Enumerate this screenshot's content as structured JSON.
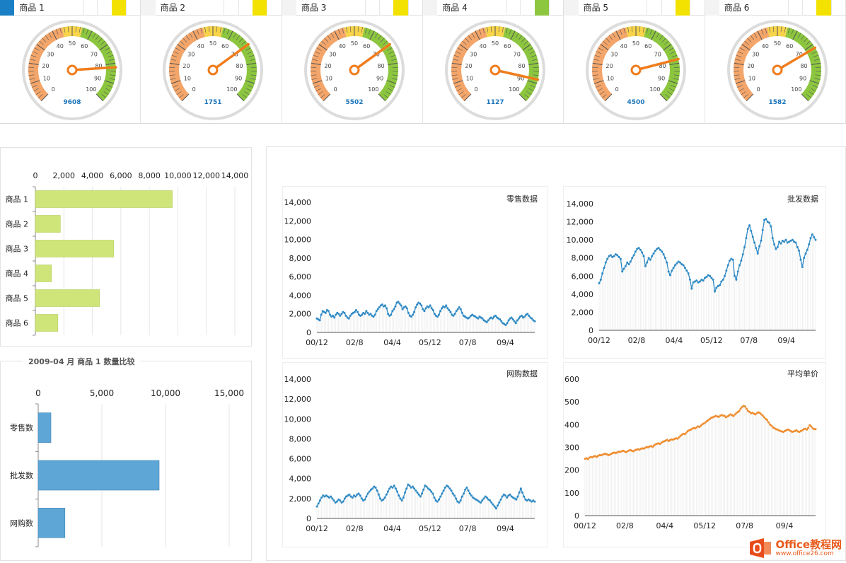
{
  "tabs": [
    {
      "label": "商品 1",
      "swatch": "#1a7fc4",
      "accent": "#f3e200"
    },
    {
      "label": "商品 2",
      "swatch": "#f3f3f3",
      "accent": "#f3e200"
    },
    {
      "label": "商品 3",
      "swatch": "#f3f3f3",
      "accent": "#f3e200"
    },
    {
      "label": "商品 4",
      "swatch": "#f3f3f3",
      "accent": "#8dc63f"
    },
    {
      "label": "商品 5",
      "swatch": "#f3f3f3",
      "accent": "#f3e200"
    },
    {
      "label": "商品 6",
      "swatch": "#f3f3f3",
      "accent": "#f3e200"
    }
  ],
  "gauges": [
    {
      "value": 82,
      "readout": "9608"
    },
    {
      "value": 70,
      "readout": "1751"
    },
    {
      "value": 70,
      "readout": "5502"
    },
    {
      "value": 88,
      "readout": "1127"
    },
    {
      "value": 78,
      "readout": "4500"
    },
    {
      "value": 72,
      "readout": "1582"
    }
  ],
  "gauge_ticks": [
    "0",
    "10",
    "20",
    "30",
    "40",
    "50",
    "60",
    "70",
    "80",
    "90",
    "100"
  ],
  "comparison_title": "2009-04 月  商品 1 数量比较",
  "colors": {
    "gauge_orange": "#f3a56a",
    "gauge_yellow": "#f7d44a",
    "gauge_green": "#8cc63f",
    "needle": "#f07c1c",
    "readout": "#1b75bb",
    "bar_green": "#cfe57a",
    "bar_blue": "#5ea6d6",
    "line_blue": "#2f8ac4",
    "line_orange": "#ef8c2e"
  },
  "logo": {
    "name": "Office教程网",
    "url": "www.office26.com"
  },
  "chart_data": [
    {
      "type": "bar",
      "orientation": "horizontal",
      "categories": [
        "商品 1",
        "商品 2",
        "商品 3",
        "商品 4",
        "商品 5",
        "商品 6"
      ],
      "values": [
        9608,
        1751,
        5502,
        1127,
        4500,
        1582
      ],
      "xlim": [
        0,
        14000
      ],
      "ticks": [
        "0",
        "2,000",
        "4,000",
        "6,000",
        "8,000",
        "10,000",
        "12,000",
        "14,000"
      ]
    },
    {
      "type": "bar",
      "orientation": "horizontal",
      "title": "2009-04 月  商品 1 数量比较",
      "categories": [
        "零售数",
        "批发数",
        "网购数"
      ],
      "values": [
        1000,
        9500,
        2100
      ],
      "xlim": [
        0,
        15000
      ],
      "ticks": [
        "0",
        "5,000",
        "10,000",
        "15,000"
      ]
    },
    {
      "type": "line",
      "title": "零售数据",
      "x_ticks": [
        "00/12",
        "02/8",
        "04/4",
        "05/12",
        "07/8",
        "09/4"
      ],
      "y_ticks": [
        "0",
        "2,000",
        "4,000",
        "6,000",
        "8,000",
        "10,000",
        "12,000",
        "14,000"
      ],
      "ylim": [
        0,
        14000
      ],
      "values": [
        1500,
        1400,
        1300,
        1900,
        2300,
        2200,
        2100,
        2400,
        2300,
        1900,
        1700,
        1800,
        1600,
        1900,
        2100,
        2000,
        1800,
        2000,
        2200,
        2100,
        1800,
        1600,
        1500,
        1800,
        2000,
        2100,
        2200,
        2400,
        2200,
        1900,
        1800,
        1900,
        2100,
        2000,
        2300,
        2100,
        1900,
        2000,
        1800,
        1700,
        1900,
        2300,
        2500,
        2700,
        2900,
        3000,
        2800,
        2900,
        2600,
        2000,
        1800,
        1900,
        2300,
        2500,
        2800,
        3200,
        3300,
        3100,
        2900,
        2500,
        2700,
        2800,
        2600,
        2100,
        1800,
        1700,
        1900,
        2200,
        2700,
        3000,
        3200,
        3100,
        2900,
        2500,
        2300,
        2600,
        2800,
        2700,
        2900,
        2600,
        2400,
        2000,
        1800,
        1700,
        1900,
        2300,
        2600,
        2800,
        2700,
        2900,
        2600,
        2400,
        2200,
        1900,
        1800,
        2000,
        2300,
        2500,
        2700,
        2500,
        2100,
        1800,
        1700,
        1600,
        1500,
        1600,
        1800,
        1900,
        1800,
        1700,
        1600,
        1500,
        1700,
        1600,
        1500,
        1300,
        1200,
        1100,
        1300,
        1500,
        1600,
        1500,
        1700,
        1800,
        1600,
        1500,
        1400,
        1200,
        1000,
        900,
        800,
        1000,
        1300,
        1500,
        1600,
        1400,
        1200,
        1000,
        1300,
        1500,
        1700,
        1800,
        1600,
        1700,
        1900,
        2000,
        1800,
        1600,
        1500,
        1300,
        1200
      ]
    },
    {
      "type": "line",
      "title": "批发数据",
      "x_ticks": [
        "00/12",
        "02/8",
        "04/4",
        "05/12",
        "07/8",
        "09/4"
      ],
      "y_ticks": [
        "0",
        "2,000",
        "4,000",
        "6,000",
        "8,000",
        "10,000",
        "12,000",
        "14,000"
      ],
      "ylim": [
        0,
        14000
      ],
      "values": [
        5200,
        5600,
        6300,
        6900,
        7500,
        7900,
        8200,
        8300,
        8100,
        8200,
        8400,
        8300,
        8100,
        7900,
        6500,
        6800,
        7100,
        7500,
        7300,
        7600,
        8000,
        8300,
        8700,
        9000,
        9100,
        8900,
        8600,
        8200,
        7100,
        7500,
        8000,
        7800,
        8200,
        8500,
        8800,
        9000,
        9100,
        8900,
        8700,
        8400,
        8000,
        7500,
        6500,
        6100,
        6600,
        6900,
        7200,
        7400,
        7600,
        7500,
        7300,
        7200,
        6900,
        6600,
        6300,
        5600,
        4600,
        5300,
        5400,
        5500,
        5300,
        5400,
        5600,
        5500,
        5800,
        5900,
        6100,
        6000,
        5800,
        5600,
        4300,
        4700,
        4900,
        5000,
        5400,
        5600,
        6000,
        6600,
        7200,
        7700,
        7900,
        7800,
        6000,
        5600,
        6500,
        7200,
        7700,
        8400,
        9200,
        10200,
        11200,
        11600,
        11000,
        10300,
        9700,
        9100,
        8500,
        9300,
        9900,
        11100,
        12200,
        12300,
        12000,
        11900,
        11500,
        10200,
        9500,
        9000,
        9200,
        9800,
        9600,
        9900,
        9800,
        10000,
        9700,
        9800,
        9900,
        10000,
        9800,
        9700,
        9200,
        8800,
        7800,
        7000,
        8000,
        8500,
        8900,
        9500,
        10200,
        10600,
        10300,
        10000
      ]
    },
    {
      "type": "line",
      "title": "网购数据",
      "x_ticks": [
        "00/12",
        "02/8",
        "04/4",
        "05/12",
        "07/8",
        "09/4"
      ],
      "y_ticks": [
        "0",
        "2,000",
        "4,000",
        "6,000",
        "8,000",
        "10,000",
        "12,000",
        "14,000"
      ],
      "ylim": [
        0,
        14000
      ],
      "values": [
        1200,
        1500,
        1800,
        2100,
        2300,
        2200,
        2300,
        2200,
        2100,
        2200,
        2000,
        1800,
        1600,
        1700,
        1900,
        1800,
        1600,
        1700,
        2000,
        2200,
        2300,
        2400,
        2200,
        2100,
        2300,
        2200,
        2400,
        2500,
        2300,
        2000,
        1800,
        1900,
        2200,
        2500,
        2700,
        2900,
        3000,
        3200,
        3100,
        2800,
        2400,
        2000,
        1800,
        1900,
        2100,
        2400,
        2700,
        3000,
        3200,
        3100,
        3300,
        3000,
        2700,
        2300,
        2000,
        1800,
        2100,
        2600,
        3000,
        3400,
        3300,
        3100,
        3200,
        3000,
        2800,
        2600,
        2400,
        2200,
        2500,
        2900,
        3300,
        3200,
        3000,
        2900,
        2700,
        2500,
        2100,
        1800,
        1700,
        1900,
        2200,
        2500,
        2800,
        3100,
        3300,
        3200,
        3000,
        2800,
        2500,
        2300,
        2000,
        1700,
        1600,
        1800,
        2200,
        2500,
        2900,
        3100,
        2800,
        2500,
        2300,
        2100,
        2000,
        1900,
        1800,
        1700,
        1600,
        1800,
        2000,
        2200,
        2100,
        1900,
        1800,
        1600,
        1400,
        1200,
        1000,
        1300,
        1600,
        1900,
        2200,
        2400,
        2300,
        2100,
        2300,
        2400,
        2200,
        2100,
        2000,
        1900,
        2200,
        2600,
        3000,
        2600,
        2200,
        1900,
        1800,
        1900,
        1800,
        1700,
        1800,
        1700
      ]
    },
    {
      "type": "line",
      "title": "平均单价",
      "x_ticks": [
        "00/12",
        "02/8",
        "04/4",
        "05/12",
        "07/8",
        "09/4"
      ],
      "y_ticks": [
        "0",
        "100",
        "200",
        "300",
        "400",
        "500",
        "600"
      ],
      "ylim": [
        0,
        600
      ],
      "values": [
        250,
        252,
        248,
        255,
        258,
        256,
        260,
        262,
        258,
        263,
        266,
        265,
        268,
        270,
        272,
        269,
        266,
        268,
        272,
        275,
        277,
        275,
        278,
        281,
        280,
        283,
        285,
        282,
        279,
        283,
        286,
        288,
        285,
        283,
        287,
        290,
        292,
        290,
        293,
        296,
        294,
        298,
        302,
        300,
        304,
        306,
        302,
        308,
        313,
        316,
        318,
        315,
        320,
        325,
        327,
        330,
        333,
        328,
        332,
        335,
        334,
        337,
        340,
        338,
        344,
        350,
        356,
        360,
        358,
        365,
        372,
        375,
        378,
        382,
        385,
        383,
        388,
        392,
        390,
        396,
        402,
        405,
        410,
        415,
        420,
        425,
        430,
        432,
        435,
        438,
        436,
        434,
        439,
        442,
        440,
        438,
        432,
        436,
        440,
        445,
        442,
        438,
        444,
        450,
        455,
        460,
        470,
        478,
        482,
        480,
        470,
        460,
        456,
        450,
        452,
        448,
        445,
        450,
        454,
        452,
        445,
        440,
        432,
        425,
        420,
        410,
        400,
        395,
        388,
        384,
        380,
        378,
        375,
        372,
        370,
        368,
        372,
        375,
        378,
        376,
        372,
        368,
        370,
        372,
        375,
        370,
        368,
        372,
        375,
        380,
        382,
        378,
        385,
        398,
        392,
        384,
        380,
        380
      ]
    }
  ]
}
